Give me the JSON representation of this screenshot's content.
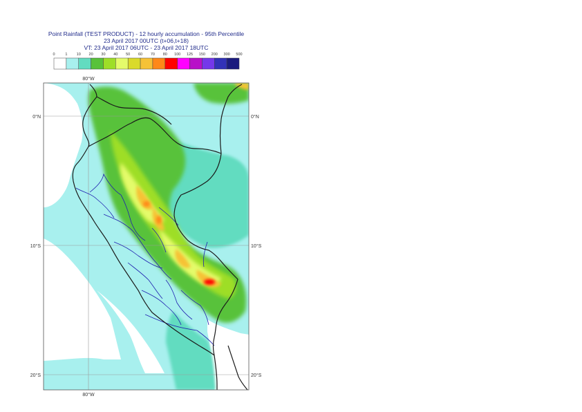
{
  "header": {
    "title_line1": "Point Rainfall (TEST PRODUCT) - 12 hourly accumulation - 95th Percentile",
    "title_line2": "23 April 2017 00UTC (t+06,t+18)",
    "title_line3": "VT: 23 April 2017 06UTC - 23 April 2017 18UTC"
  },
  "legend": {
    "ticks": [
      "0",
      "1",
      "10",
      "20",
      "30",
      "40",
      "50",
      "60",
      "70",
      "80",
      "100",
      "125",
      "150",
      "200",
      "300",
      "500"
    ],
    "colors": [
      "#ffffff",
      "#a8f0ee",
      "#62dcc0",
      "#58c23a",
      "#9ede28",
      "#e4fb6b",
      "#dada2a",
      "#f6c236",
      "#ff8818",
      "#ff0000",
      "#ff00ff",
      "#b810c8",
      "#7438ea",
      "#3232b8",
      "#1c1c7e"
    ]
  },
  "map": {
    "lon_labels": [
      "80°W",
      "80°W"
    ],
    "lat_labels_left": [
      "0°N",
      "10°S",
      "20°S"
    ],
    "lat_labels_right": [
      "0°N",
      "10°S",
      "20°S"
    ],
    "colors": {
      "sea": "#a8f0ee",
      "light": "#62dcc0",
      "green": "#58c23a",
      "yellowgreen": "#9ede28",
      "yellow": "#e4fb6b",
      "olive": "#dada2a",
      "orange": "#f6c236",
      "darkorange": "#ff8818",
      "red": "#ff0000",
      "border": "#1a1a1a",
      "province": "#1f1fb0"
    }
  }
}
